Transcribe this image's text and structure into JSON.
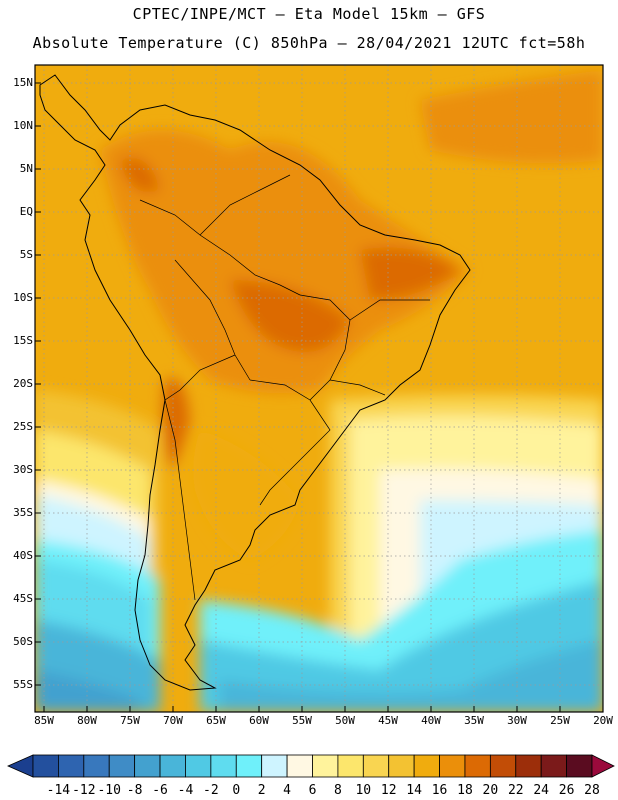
{
  "title": {
    "line1": "CPTEC/INPE/MCT –  Eta Model 15km – GFS",
    "line2": "Absolute Temperature (C) 850hPa – 28/04/2021 12UTC fct=58h"
  },
  "map": {
    "lat_labels": [
      "15N",
      "10N",
      "5N",
      "EQ",
      "5S",
      "10S",
      "15S",
      "20S",
      "25S",
      "30S",
      "35S",
      "40S",
      "45S",
      "50S",
      "55S"
    ],
    "lon_labels": [
      "85W",
      "80W",
      "75W",
      "70W",
      "65W",
      "60W",
      "55W",
      "50W",
      "45W",
      "40W",
      "35W",
      "30W",
      "25W",
      "20W"
    ]
  },
  "colorbar": {
    "labels": [
      "-14",
      "-12",
      "-10",
      "-8",
      "-6",
      "-4",
      "-2",
      "0",
      "2",
      "4",
      "6",
      "8",
      "10",
      "12",
      "14",
      "16",
      "18",
      "20",
      "22",
      "24",
      "26",
      "28"
    ],
    "colors": [
      "#1b3f8f",
      "#23509e",
      "#2e64b0",
      "#3878bd",
      "#3f8cc6",
      "#43a1cf",
      "#49b5d9",
      "#50c9e4",
      "#5fdcef",
      "#6ff0fa",
      "#cef4ff",
      "#fff8e3",
      "#fff39c",
      "#fce66c",
      "#f9d551",
      "#f3c232",
      "#f0ac0e",
      "#eb8f0a",
      "#dc6a04",
      "#c24d06",
      "#9c2e0a",
      "#7b1a1a",
      "#5a0c20",
      "#9a0a3c"
    ]
  }
}
